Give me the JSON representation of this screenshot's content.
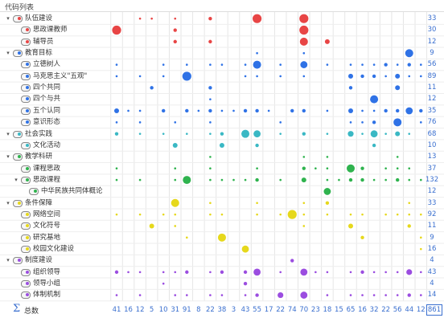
{
  "panel_title": "代码列表",
  "footer": {
    "label": "总数",
    "grand_total": "861"
  },
  "column_totals": [
    "41",
    "16",
    "12",
    "5",
    "10",
    "31",
    "91",
    "8",
    "22",
    "38",
    "3",
    "43",
    "55",
    "17",
    "22",
    "74",
    "70",
    "23",
    "18",
    "15",
    "65",
    "16",
    "32",
    "22",
    "56",
    "44",
    "12"
  ],
  "rows": [
    {
      "label": "队伍建设",
      "level": 0,
      "expanded": true,
      "count": "33",
      "color": "#e84545"
    },
    {
      "label": "思政课教师",
      "level": 1,
      "count": "30",
      "color": "#e84545"
    },
    {
      "label": "辅导员",
      "level": 1,
      "count": "12",
      "color": "#e84545"
    },
    {
      "label": "教育目标",
      "level": 0,
      "expanded": true,
      "count": "9",
      "color": "#2f72e6"
    },
    {
      "label": "立德树人",
      "level": 1,
      "count": "56",
      "color": "#2f72e6"
    },
    {
      "label": "马克思主义\"五观\"",
      "level": 1,
      "count": "89",
      "color": "#2f72e6"
    },
    {
      "label": "四个共同",
      "level": 1,
      "count": "11",
      "color": "#2f72e6"
    },
    {
      "label": "四个与共",
      "level": 1,
      "count": "12",
      "color": "#2f72e6"
    },
    {
      "label": "五个认同",
      "level": 1,
      "count": "35",
      "color": "#2f72e6"
    },
    {
      "label": "意识形态",
      "level": 1,
      "count": "76",
      "color": "#2f72e6"
    },
    {
      "label": "社会实践",
      "level": 0,
      "expanded": true,
      "count": "68",
      "color": "#3ab8c4"
    },
    {
      "label": "文化活动",
      "level": 1,
      "count": "10",
      "color": "#3ab8c4"
    },
    {
      "label": "教学科研",
      "level": 0,
      "expanded": true,
      "count": "13",
      "color": "#2fb34e"
    },
    {
      "label": "课程思政",
      "level": 1,
      "count": "37",
      "color": "#2fb34e"
    },
    {
      "label": "思政课程",
      "level": 1,
      "expanded": true,
      "count": "132",
      "color": "#2fb34e"
    },
    {
      "label": "中华民族共同体概论",
      "level": 2,
      "count": "12",
      "color": "#2fb34e"
    },
    {
      "label": "条件保障",
      "level": 0,
      "expanded": true,
      "count": "33",
      "color": "#e6d81c"
    },
    {
      "label": "网络空间",
      "level": 1,
      "count": "92",
      "color": "#e6d81c"
    },
    {
      "label": "文化符号",
      "level": 1,
      "count": "11",
      "color": "#e6d81c"
    },
    {
      "label": "研究基地",
      "level": 1,
      "count": "9",
      "color": "#e6d81c"
    },
    {
      "label": "校园文化建设",
      "level": 1,
      "count": "16",
      "color": "#e6d81c"
    },
    {
      "label": "制度建设",
      "level": 0,
      "expanded": true,
      "count": "4",
      "color": "#9b4de0"
    },
    {
      "label": "组织领导",
      "level": 1,
      "count": "43",
      "color": "#9b4de0"
    },
    {
      "label": "领导小组",
      "level": 1,
      "count": "4",
      "color": "#9b4de0"
    },
    {
      "label": "体制机制",
      "level": 1,
      "count": "14",
      "color": "#9b4de0"
    }
  ],
  "cells": [
    [
      0,
      0,
      1,
      1,
      0,
      1,
      0,
      0,
      2,
      0,
      0,
      0,
      9,
      0,
      0,
      0,
      8,
      0,
      0,
      0,
      0,
      0,
      0,
      0,
      0,
      0,
      0
    ],
    [
      7,
      0,
      0,
      0,
      0,
      2,
      0,
      0,
      0,
      0,
      0,
      0,
      0,
      0,
      0,
      0,
      9,
      0,
      0,
      0,
      0,
      0,
      0,
      0,
      0,
      0,
      0
    ],
    [
      0,
      0,
      0,
      0,
      0,
      2,
      0,
      0,
      2,
      0,
      0,
      0,
      0,
      0,
      0,
      0,
      6,
      0,
      3,
      0,
      0,
      0,
      0,
      0,
      0,
      0,
      0
    ],
    [
      0,
      0,
      0,
      0,
      0,
      0,
      0,
      0,
      0,
      0,
      0,
      0,
      1,
      0,
      0,
      0,
      1,
      0,
      0,
      0,
      0,
      0,
      0,
      0,
      0,
      6,
      0
    ],
    [
      1,
      0,
      0,
      0,
      1,
      0,
      1,
      0,
      1,
      1,
      0,
      1,
      6,
      0,
      1,
      0,
      5,
      0,
      1,
      0,
      1,
      1,
      1,
      2,
      1,
      2,
      1
    ],
    [
      1,
      0,
      1,
      0,
      1,
      0,
      7,
      0,
      0,
      0,
      0,
      1,
      1,
      0,
      1,
      0,
      1,
      0,
      0,
      0,
      3,
      2,
      2,
      1,
      3,
      1,
      1
    ],
    [
      0,
      0,
      0,
      2,
      0,
      0,
      0,
      0,
      2,
      0,
      0,
      0,
      0,
      0,
      0,
      0,
      0,
      0,
      0,
      0,
      2,
      0,
      0,
      0,
      3,
      0,
      0
    ],
    [
      0,
      0,
      0,
      0,
      0,
      0,
      0,
      0,
      1,
      0,
      0,
      0,
      0,
      0,
      0,
      0,
      0,
      0,
      0,
      0,
      0,
      0,
      6,
      0,
      0,
      0,
      0
    ],
    [
      3,
      1,
      1,
      0,
      2,
      0,
      2,
      1,
      2,
      1,
      1,
      2,
      2,
      1,
      0,
      2,
      2,
      0,
      1,
      0,
      3,
      1,
      1,
      2,
      2,
      5,
      2
    ],
    [
      1,
      0,
      1,
      0,
      0,
      1,
      0,
      0,
      1,
      0,
      0,
      0,
      0,
      0,
      1,
      0,
      0,
      0,
      0,
      0,
      1,
      1,
      2,
      0,
      6,
      0,
      1
    ],
    [
      2,
      0,
      1,
      0,
      1,
      0,
      1,
      0,
      1,
      2,
      0,
      6,
      5,
      0,
      1,
      0,
      2,
      0,
      1,
      0,
      4,
      1,
      5,
      1,
      3,
      1,
      0
    ],
    [
      0,
      0,
      0,
      0,
      0,
      3,
      0,
      0,
      0,
      3,
      0,
      0,
      2,
      0,
      0,
      0,
      0,
      0,
      0,
      0,
      0,
      0,
      2,
      0,
      0,
      0,
      0
    ],
    [
      0,
      0,
      0,
      0,
      0,
      0,
      0,
      0,
      1,
      0,
      0,
      0,
      0,
      0,
      0,
      0,
      1,
      0,
      1,
      0,
      0,
      0,
      0,
      0,
      1,
      0,
      0
    ],
    [
      1,
      0,
      0,
      0,
      0,
      1,
      0,
      0,
      1,
      0,
      0,
      0,
      1,
      0,
      0,
      0,
      2,
      1,
      1,
      0,
      6,
      2,
      0,
      1,
      1,
      1,
      0
    ],
    [
      1,
      0,
      1,
      0,
      0,
      1,
      6,
      0,
      1,
      1,
      1,
      1,
      2,
      0,
      1,
      0,
      3,
      0,
      1,
      1,
      2,
      2,
      1,
      1,
      2,
      1,
      1
    ],
    [
      0,
      0,
      0,
      0,
      0,
      0,
      0,
      0,
      0,
      0,
      0,
      0,
      0,
      0,
      0,
      0,
      0,
      0,
      5,
      0,
      0,
      0,
      0,
      0,
      0,
      0,
      0
    ],
    [
      0,
      0,
      0,
      0,
      0,
      6,
      0,
      0,
      1,
      0,
      0,
      0,
      1,
      0,
      0,
      0,
      1,
      0,
      2,
      0,
      0,
      0,
      0,
      0,
      0,
      1,
      0
    ],
    [
      1,
      0,
      1,
      0,
      1,
      1,
      0,
      0,
      1,
      1,
      0,
      0,
      1,
      0,
      1,
      7,
      1,
      0,
      1,
      0,
      1,
      1,
      0,
      1,
      1,
      1,
      1
    ],
    [
      0,
      0,
      0,
      3,
      0,
      1,
      0,
      0,
      0,
      0,
      0,
      0,
      0,
      0,
      0,
      0,
      1,
      0,
      0,
      0,
      3,
      0,
      0,
      0,
      0,
      2,
      0
    ],
    [
      0,
      0,
      0,
      0,
      0,
      0,
      1,
      0,
      0,
      6,
      0,
      0,
      0,
      0,
      0,
      0,
      0,
      0,
      0,
      0,
      0,
      2,
      0,
      0,
      0,
      0,
      1
    ],
    [
      0,
      0,
      0,
      0,
      0,
      0,
      0,
      0,
      0,
      0,
      0,
      5,
      0,
      0,
      0,
      0,
      0,
      0,
      0,
      0,
      0,
      0,
      0,
      0,
      0,
      0,
      1
    ],
    [
      0,
      0,
      0,
      0,
      0,
      0,
      0,
      0,
      0,
      0,
      0,
      0,
      0,
      0,
      0,
      2,
      0,
      0,
      0,
      0,
      0,
      0,
      0,
      0,
      0,
      0,
      0
    ],
    [
      2,
      1,
      1,
      0,
      1,
      1,
      2,
      0,
      1,
      2,
      0,
      2,
      5,
      0,
      1,
      0,
      5,
      1,
      1,
      0,
      1,
      2,
      1,
      1,
      1,
      4,
      1
    ],
    [
      0,
      0,
      0,
      0,
      1,
      0,
      0,
      0,
      0,
      0,
      0,
      2,
      0,
      0,
      0,
      0,
      0,
      0,
      0,
      0,
      0,
      0,
      0,
      0,
      0,
      0,
      0
    ],
    [
      1,
      0,
      1,
      0,
      0,
      1,
      1,
      0,
      1,
      1,
      0,
      1,
      2,
      0,
      4,
      0,
      5,
      0,
      1,
      0,
      1,
      1,
      1,
      1,
      1,
      2,
      1
    ]
  ]
}
